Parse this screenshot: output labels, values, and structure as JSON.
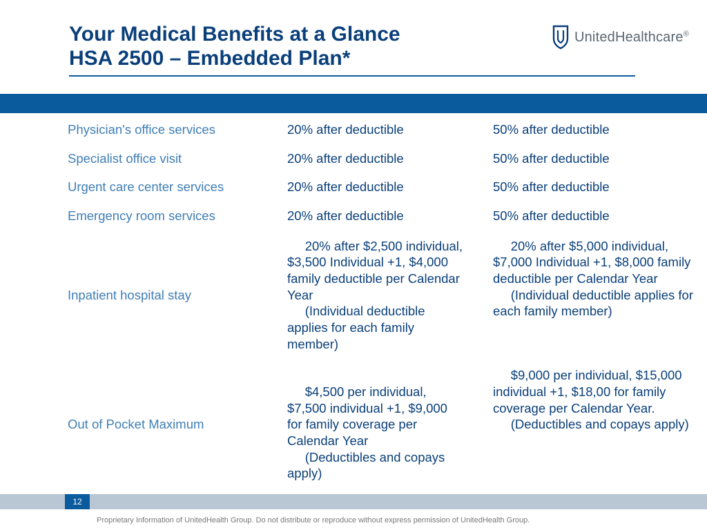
{
  "colors": {
    "title": "#0a3f7a",
    "band": "#0a5a9e",
    "rule": "#0a5a9e",
    "row_label": "#3f7eb5",
    "cell_text": "#0a3f7a",
    "logo_text": "#5b6670",
    "logo_shield_stroke": "#0a3f7a",
    "bottom_stripe": "#b9c6d3",
    "page_bg": "#0a5a9e"
  },
  "title": {
    "line1": "Your Medical Benefits at a Glance",
    "line2": "HSA 2500 – Embedded Plan*"
  },
  "logo": {
    "name": "UnitedHealthcare",
    "reg": "®"
  },
  "table": {
    "rows": [
      {
        "label": "Physician's office services",
        "col2": "20% after deductible",
        "col3": "50% after deductible",
        "tall": false
      },
      {
        "label": "Specialist office visit",
        "col2": "20% after deductible",
        "col3": "50% after deductible",
        "tall": false
      },
      {
        "label": "Urgent care center services",
        "col2": "20% after deductible",
        "col3": "50% after deductible",
        "tall": false
      },
      {
        "label": "Emergency room services",
        "col2": "20% after deductible",
        "col3": "50% after deductible",
        "tall": false
      },
      {
        "label": "Inpatient hospital stay",
        "col2": "     20% after $2,500 individual, $3,500 Individual +1, $4,000 family deductible per Calendar Year\n     (Individual deductible applies for each family member)",
        "col3": "     20% after $5,000 individual, $7,000 Individual +1, $8,000 family deductible per Calendar Year\n     (Individual deductible applies for each family member)",
        "tall": true
      },
      {
        "label": "Out of Pocket Maximum",
        "col2": "\n     $4,500 per individual, $7,500 individual +1, $9,000 for family coverage per Calendar Year\n     (Deductibles and copays apply)",
        "col3": "     $9,000 per individual, $15,000 individual +1, $18,00 for family coverage per Calendar Year.\n     (Deductibles and copays apply)",
        "tall": true
      }
    ]
  },
  "page_number": "12",
  "footer": "Proprietary Information of UnitedHealth Group.  Do not distribute or reproduce without express permission of UnitedHealth Group."
}
